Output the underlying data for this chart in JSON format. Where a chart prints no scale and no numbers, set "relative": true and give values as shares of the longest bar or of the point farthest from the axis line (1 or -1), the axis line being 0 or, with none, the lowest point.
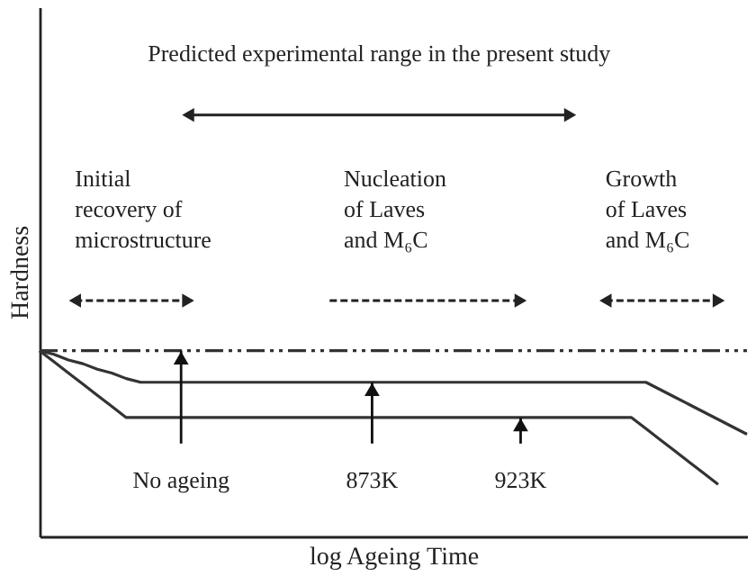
{
  "chart_data": {
    "type": "line",
    "relative": true,
    "xlabel": "log Ageing Time",
    "ylabel": "Hardness",
    "tick_labels": false,
    "grid": false,
    "categories": [
      null,
      null,
      null,
      null,
      null,
      null,
      null,
      null,
      null,
      null,
      null,
      null,
      null,
      null,
      null,
      null,
      null,
      null,
      null,
      null,
      null,
      null,
      null,
      null,
      null,
      null,
      null,
      null,
      null,
      null,
      null,
      null,
      null,
      null,
      null,
      null,
      null,
      null,
      null,
      null,
      null,
      null,
      null,
      null,
      null,
      null,
      null,
      null,
      null,
      null
    ],
    "series": [
      {
        "color": "#333333",
        "line_style": "dashed",
        "values": [
          1,
          1,
          1,
          1,
          1,
          1,
          1,
          1,
          1,
          1,
          1,
          1,
          1,
          1,
          1,
          1,
          1,
          1,
          1,
          1,
          1,
          1,
          1,
          1,
          1,
          1,
          1,
          1,
          1,
          1,
          1,
          1,
          1,
          1,
          1,
          1,
          1,
          1,
          1,
          1,
          1,
          1,
          1,
          1,
          1,
          1,
          1,
          1,
          1,
          1
        ]
      },
      {
        "color": "#333333",
        "line_style": "solid",
        "values": [
          1,
          0.98,
          0.95,
          0.93,
          0.9,
          0.88,
          0.85,
          0.83,
          0.83,
          0.83,
          0.83,
          0.83,
          0.83,
          0.83,
          0.83,
          0.83,
          0.83,
          0.83,
          0.83,
          0.83,
          0.83,
          0.83,
          0.83,
          0.83,
          0.83,
          0.83,
          0.83,
          0.83,
          0.83,
          0.83,
          0.83,
          0.83,
          0.83,
          0.83,
          0.83,
          0.83,
          0.83,
          0.83,
          0.83,
          0.83,
          0.83,
          0.83,
          0.83,
          0.79,
          0.75,
          0.71,
          0.67,
          0.63,
          0.59,
          0.55
        ]
      },
      {
        "color": "#333333",
        "line_style": "solid",
        "values": [
          1,
          0.94,
          0.88,
          0.82,
          0.76,
          0.7,
          0.64,
          0.64,
          0.64,
          0.64,
          0.64,
          0.64,
          0.64,
          0.64,
          0.64,
          0.64,
          0.64,
          0.64,
          0.64,
          0.64,
          0.64,
          0.64,
          0.64,
          0.64,
          0.64,
          0.64,
          0.64,
          0.64,
          0.64,
          0.64,
          0.64,
          0.64,
          0.64,
          0.64,
          0.64,
          0.64,
          0.64,
          0.64,
          0.64,
          0.64,
          0.64,
          0.64,
          0.58,
          0.52,
          0.46,
          0.4,
          0.34,
          0.28,
          null,
          null
        ]
      }
    ],
    "annotations": [
      "Predicted experimental range in the present study",
      "Initial recovery of microstructure",
      "Nucleation of Laves and M₆C",
      "Growth of Laves and M₆C",
      {
        "text": "No ageing",
        "y": 1
      },
      {
        "text": "873K",
        "y": 0.83
      },
      {
        "text": "923K",
        "y": 0.64
      }
    ]
  }
}
